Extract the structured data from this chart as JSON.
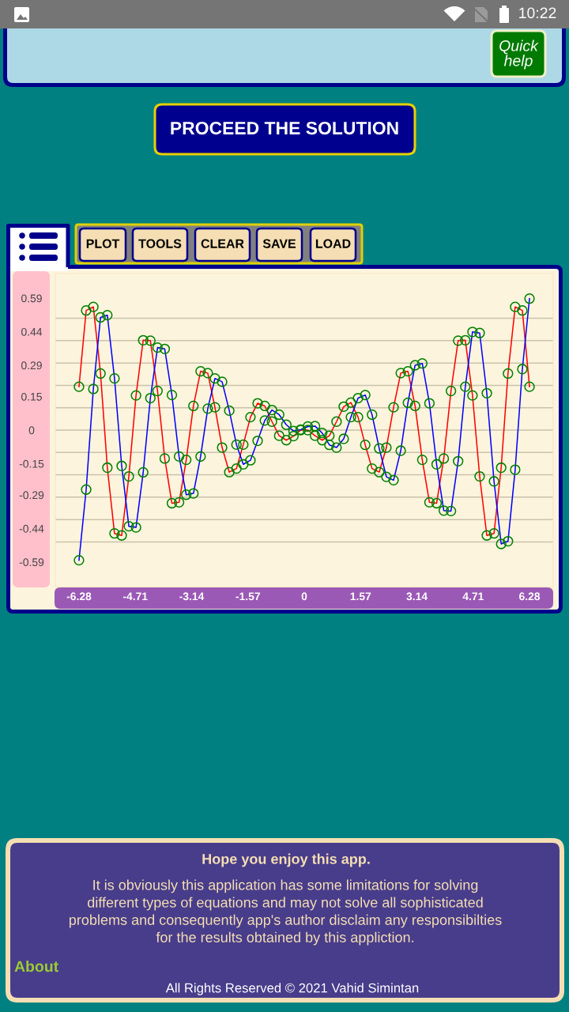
{
  "chart_data": {
    "type": "line",
    "marker": "circle",
    "line_style": "solid",
    "grid": "y",
    "x": [
      -6.28,
      -6.08,
      -5.88,
      -5.68,
      -5.49,
      -5.29,
      -5.09,
      -4.89,
      -4.69,
      -4.49,
      -4.29,
      -4.09,
      -3.89,
      -3.69,
      -3.49,
      -3.29,
      -3.09,
      -2.89,
      -2.69,
      -2.49,
      -2.29,
      -2.09,
      -1.89,
      -1.7,
      -1.5,
      -1.3,
      -1.1,
      -0.9,
      -0.7,
      -0.5,
      -0.3,
      -0.1,
      0.1,
      0.3,
      0.5,
      0.7,
      0.9,
      1.1,
      1.3,
      1.5,
      1.7,
      1.89,
      2.09,
      2.29,
      2.49,
      2.69,
      2.89,
      3.09,
      3.29,
      3.49,
      3.69,
      3.89,
      4.09,
      4.29,
      4.49,
      4.69,
      4.89,
      5.09,
      5.29,
      5.49,
      5.68,
      5.88,
      6.08,
      6.28
    ],
    "series": [
      {
        "color": "#ff0000",
        "colors": [
          "#008000",
          "#008000",
          "#008000",
          "#008000",
          "#008000",
          "#008000",
          "#008000",
          "#008000",
          "#008000",
          "#008000",
          "#008000",
          "#008000",
          "#008000",
          "#008000",
          "#008000",
          "#008000",
          "#008000",
          "#008000",
          "#008000",
          "#008000",
          "#008000",
          "#008000",
          "#008000",
          "#008000",
          "#008000",
          "#008000",
          "#008000",
          "#008000",
          "#008000",
          "#008000",
          "#008000",
          "#008000",
          "#008000",
          "#008000",
          "#008000",
          "#008000",
          "#008000",
          "#008000",
          "#008000",
          "#008000",
          "#008000",
          "#008000",
          "#008000",
          "#008000",
          "#008000",
          "#008000",
          "#008000",
          "#008000",
          "#008000",
          "#008000",
          "#008000",
          "#008000",
          "#008000",
          "#008000",
          "#008000",
          "#008000",
          "#008000",
          "#008000",
          "#008000",
          "#008000",
          "#008000",
          "#008000",
          "#008000",
          "#008000"
        ],
        "values": [
          0.194,
          0.535,
          0.551,
          0.253,
          -0.168,
          -0.462,
          -0.471,
          -0.207,
          0.155,
          0.402,
          0.4,
          0.175,
          -0.127,
          -0.327,
          -0.323,
          -0.133,
          0.108,
          0.263,
          0.255,
          0.102,
          -0.078,
          -0.188,
          -0.172,
          -0.065,
          0.058,
          0.12,
          0.108,
          0.038,
          -0.025,
          -0.045,
          -0.027,
          0,
          0,
          -0.025,
          -0.045,
          -0.025,
          0.038,
          0.105,
          0.123,
          0.058,
          -0.066,
          -0.172,
          -0.188,
          -0.078,
          0.102,
          0.255,
          0.263,
          0.108,
          -0.133,
          -0.323,
          -0.327,
          -0.127,
          0.175,
          0.4,
          0.402,
          0.155,
          -0.207,
          -0.471,
          -0.462,
          -0.168,
          0.253,
          0.551,
          0.535,
          0.194
        ]
      },
      {
        "color": "#0000ff",
        "colors": [
          "#008000",
          "#008000",
          "#008000",
          "#008000",
          "#008000",
          "#008000",
          "#008000",
          "#008000",
          "#008000",
          "#008000",
          "#008000",
          "#008000",
          "#008000",
          "#008000",
          "#008000",
          "#008000",
          "#008000",
          "#008000",
          "#008000",
          "#008000",
          "#008000",
          "#008000",
          "#008000",
          "#008000",
          "#008000",
          "#008000",
          "#008000",
          "#008000",
          "#008000",
          "#008000",
          "#008000",
          "#008000",
          "#008000",
          "#008000",
          "#008000",
          "#008000",
          "#008000",
          "#008000",
          "#008000",
          "#008000",
          "#008000",
          "#008000",
          "#008000",
          "#008000",
          "#008000",
          "#008000",
          "#008000",
          "#008000",
          "#008000",
          "#008000",
          "#008000",
          "#008000",
          "#008000",
          "#008000",
          "#008000",
          "#008000",
          "#008000",
          "#008000",
          "#008000",
          "#008000",
          "#008000",
          "#008000",
          "#008000",
          "#008000"
        ],
        "values": [
          -0.582,
          -0.266,
          0.184,
          0.504,
          0.514,
          0.231,
          -0.16,
          -0.43,
          -0.435,
          -0.189,
          0.143,
          0.369,
          0.363,
          0.157,
          -0.118,
          -0.289,
          -0.283,
          -0.118,
          0.096,
          0.231,
          0.216,
          0.087,
          -0.065,
          -0.153,
          -0.135,
          -0.048,
          0.043,
          0.09,
          0.069,
          0.024,
          -0.004,
          0.002,
          0.016,
          0.018,
          -0.013,
          -0.066,
          -0.078,
          -0.039,
          0.058,
          0.143,
          0.157,
          0.069,
          -0.082,
          -0.209,
          -0.224,
          -0.092,
          0.122,
          0.29,
          0.298,
          0.12,
          -0.153,
          -0.36,
          -0.362,
          -0.139,
          0.194,
          0.439,
          0.434,
          0.165,
          -0.229,
          -0.509,
          -0.497,
          -0.177,
          0.273,
          0.588
        ]
      }
    ],
    "xlim": [
      -6.94,
      6.94
    ],
    "ylim": [
      -0.7,
      0.7
    ],
    "xticks": [
      -6.28,
      -4.71,
      -3.14,
      -1.57,
      0,
      1.57,
      3.14,
      4.71,
      6.28
    ],
    "yticks": [
      -0.59,
      {
        "value": -0.5,
        "label": null
      },
      -0.44,
      {
        "value": -0.4,
        "label": null
      },
      {
        "value": -0.3,
        "label": null
      },
      -0.29,
      {
        "value": -0.2,
        "label": null
      },
      -0.15,
      {
        "value": -0.1,
        "label": null
      },
      0,
      {
        "value": 0,
        "label": null
      },
      {
        "value": 0.1,
        "label": null
      },
      0.15,
      {
        "value": 0.2,
        "label": null
      },
      0.29,
      {
        "value": 0.3,
        "label": null
      },
      {
        "value": 0.4,
        "label": null
      },
      0.44,
      {
        "value": 0.5,
        "label": null
      },
      0.59
    ],
    "annotations": [
      "10:22",
      "Quick\nhelp",
      "PROCEED THE SOLUTION",
      "PLOT",
      "TOOLS",
      "CLEAR",
      "SAVE",
      "LOAD",
      "Hope you enjoy this app.",
      "It is obviously this application has some limitations for solving\ndifferent types of equations and may not solve all sophisticated\nproblems and consequently app's author disclaim any responsibilties\nfor the results obtained by this appliction.",
      "About",
      "All Rights Reserved © 2021 Vahid Simintan"
    ]
  }
}
